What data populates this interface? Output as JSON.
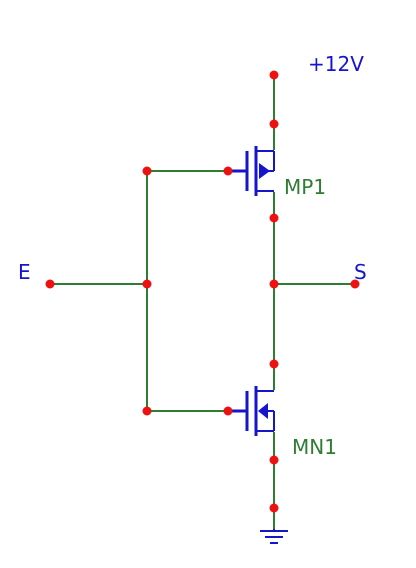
{
  "labels": {
    "supply": "+12V",
    "input": "E",
    "output": "S",
    "pmos": "MP1",
    "nmos": "MN1"
  },
  "colors": {
    "wire": "#2e7d32",
    "device": "#1515cc",
    "node": "#ee1111",
    "net_label": "#1515cc",
    "device_label": "#2e7d32"
  },
  "icons": {
    "ground": "ground-icon",
    "pmos": "pmos-transistor-icon",
    "nmos": "nmos-transistor-icon"
  }
}
